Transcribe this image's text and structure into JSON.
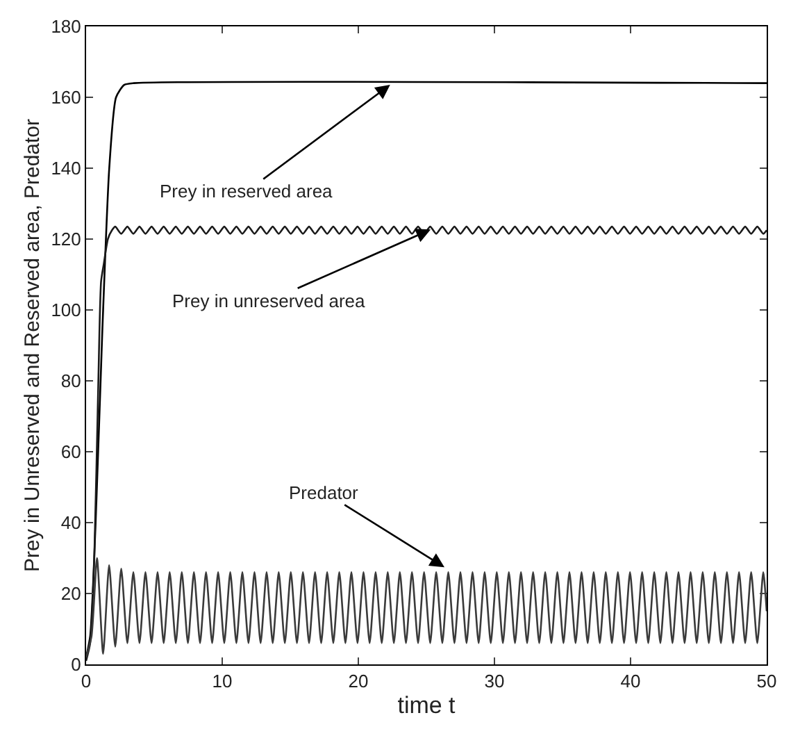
{
  "chart_data": {
    "type": "line",
    "xlabel": "time t",
    "ylabel": "Prey in Unreserved and Reserved area, Predator",
    "xlim": [
      0,
      50
    ],
    "ylim": [
      0,
      180
    ],
    "xticks": [
      0,
      10,
      20,
      30,
      40,
      50
    ],
    "yticks": [
      0,
      20,
      40,
      60,
      80,
      100,
      120,
      140,
      160,
      180
    ],
    "grid": false,
    "marker": "none",
    "line_style": "solid",
    "annotations": [
      {
        "text": "Prey in reserved area",
        "x": 22.5,
        "y": 164
      },
      {
        "text": "Prey in unreserved area",
        "x": 25.5,
        "y": 123
      },
      {
        "text": "Predator",
        "x": 26.5,
        "y": 27
      }
    ],
    "series": [
      {
        "color": "#000000",
        "x": [
          0,
          0.3,
          0.7,
          1.2,
          1.7,
          2.2,
          2.8,
          3.5,
          50
        ],
        "values": [
          2,
          8,
          40,
          95,
          140,
          160,
          163.5,
          164,
          164
        ]
      },
      {
        "color": "#1a1a1a",
        "x": [
          0,
          0.3,
          0.6,
          0.9,
          1.1,
          1.3,
          1.6,
          1.9,
          2.14,
          2.58,
          3.03,
          3.47,
          3.92,
          4.36,
          4.81,
          5.25,
          5.7,
          6.14,
          6.59,
          7.03,
          7.48,
          7.92,
          8.37,
          8.81,
          9.26,
          9.7,
          10.15,
          10.59,
          11.04,
          11.48,
          11.93,
          12.37,
          12.82,
          13.26,
          13.71,
          14.15,
          14.6,
          15.04,
          15.49,
          15.93,
          16.38,
          16.82,
          17.27,
          17.71,
          18.16,
          18.6,
          19.05,
          19.49,
          19.94,
          20.38,
          20.83,
          21.27,
          21.72,
          22.16,
          22.61,
          23.05,
          23.5,
          23.94,
          24.39,
          24.83,
          25.28,
          25.72,
          26.17,
          26.61,
          27.06,
          27.5,
          27.95,
          28.39,
          28.84,
          29.28,
          29.73,
          30.17,
          30.62,
          31.06,
          31.51,
          31.95,
          32.4,
          32.84,
          33.29,
          33.73,
          34.18,
          34.62,
          35.07,
          35.51,
          35.96,
          36.4,
          36.85,
          37.29,
          37.74,
          38.18,
          38.63,
          39.07,
          39.52,
          39.96,
          40.41,
          40.85,
          41.3,
          41.74,
          42.19,
          42.63,
          43.08,
          43.52,
          43.97,
          44.41,
          44.86,
          45.3,
          45.75,
          46.19,
          46.64,
          47.08,
          47.53,
          47.97,
          48.42,
          48.86,
          49.31,
          49.75,
          50
        ],
        "values": [
          1,
          6,
          30,
          80,
          108,
          113,
          120,
          122.5,
          123.5,
          121.5,
          123.5,
          121.5,
          123.5,
          121.5,
          123.5,
          121.5,
          123.5,
          121.5,
          123.5,
          121.5,
          123.5,
          121.5,
          123.5,
          121.5,
          123.5,
          121.5,
          123.5,
          121.5,
          123.5,
          121.5,
          123.5,
          121.5,
          123.5,
          121.5,
          123.5,
          121.5,
          123.5,
          121.5,
          123.5,
          121.5,
          123.5,
          121.5,
          123.5,
          121.5,
          123.5,
          121.5,
          123.5,
          121.5,
          123.5,
          121.5,
          123.5,
          121.5,
          123.5,
          121.5,
          123.5,
          121.5,
          123.5,
          121.5,
          123.5,
          121.5,
          123.5,
          121.5,
          123.5,
          121.5,
          123.5,
          121.5,
          123.5,
          121.5,
          123.5,
          121.5,
          123.5,
          121.5,
          123.5,
          121.5,
          123.5,
          121.5,
          123.5,
          121.5,
          123.5,
          121.5,
          123.5,
          121.5,
          123.5,
          121.5,
          123.5,
          121.5,
          123.5,
          121.5,
          123.5,
          121.5,
          123.5,
          121.5,
          123.5,
          121.5,
          123.5,
          121.5,
          123.5,
          121.5,
          123.5,
          121.5,
          123.5,
          121.5,
          123.5,
          121.5,
          123.5,
          121.5,
          123.5,
          121.5,
          123.5,
          121.5,
          123.5,
          121.5,
          123.5,
          121.5,
          123.5,
          121.5,
          122.5
        ]
      },
      {
        "color": "#3a3a3a",
        "x": [
          0,
          0.4,
          0.8,
          1.25,
          1.69,
          2.14,
          2.58,
          3.03,
          3.47,
          3.92,
          4.36,
          4.81,
          5.25,
          5.7,
          6.14,
          6.59,
          7.03,
          7.48,
          7.92,
          8.37,
          8.81,
          9.26,
          9.7,
          10.15,
          10.59,
          11.04,
          11.48,
          11.93,
          12.37,
          12.82,
          13.26,
          13.71,
          14.15,
          14.6,
          15.04,
          15.49,
          15.93,
          16.38,
          16.82,
          17.27,
          17.71,
          18.16,
          18.6,
          19.05,
          19.49,
          19.94,
          20.38,
          20.83,
          21.27,
          21.72,
          22.16,
          22.61,
          23.05,
          23.5,
          23.94,
          24.39,
          24.83,
          25.28,
          25.72,
          26.17,
          26.61,
          27.06,
          27.5,
          27.95,
          28.39,
          28.84,
          29.28,
          29.73,
          30.17,
          30.62,
          31.06,
          31.51,
          31.95,
          32.4,
          32.84,
          33.29,
          33.73,
          34.18,
          34.62,
          35.07,
          35.51,
          35.96,
          36.4,
          36.85,
          37.29,
          37.74,
          38.18,
          38.63,
          39.07,
          39.52,
          39.96,
          40.41,
          40.85,
          41.3,
          41.74,
          42.19,
          42.63,
          43.08,
          43.52,
          43.97,
          44.41,
          44.86,
          45.3,
          45.75,
          46.19,
          46.64,
          47.08,
          47.53,
          47.97,
          48.42,
          48.86,
          49.31,
          49.75,
          50
        ],
        "values": [
          2,
          8,
          30,
          3,
          28,
          5,
          27,
          6,
          26,
          6,
          26,
          6,
          26,
          6,
          26,
          6,
          26,
          6,
          26,
          6,
          26,
          6,
          26,
          6,
          26,
          6,
          26,
          6,
          26,
          6,
          26,
          6,
          26,
          6,
          26,
          6,
          26,
          6,
          26,
          6,
          26,
          6,
          26,
          6,
          26,
          6,
          26,
          6,
          26,
          6,
          26,
          6,
          26,
          6,
          26,
          6,
          26,
          6,
          26,
          6,
          26,
          6,
          26,
          6,
          26,
          6,
          26,
          6,
          26,
          6,
          26,
          6,
          26,
          6,
          26,
          6,
          26,
          6,
          26,
          6,
          26,
          6,
          26,
          6,
          26,
          6,
          26,
          6,
          26,
          6,
          26,
          6,
          26,
          6,
          26,
          6,
          26,
          6,
          26,
          6,
          26,
          6,
          26,
          6,
          26,
          6,
          26,
          6,
          26,
          6,
          26,
          6,
          26,
          15
        ]
      }
    ]
  }
}
